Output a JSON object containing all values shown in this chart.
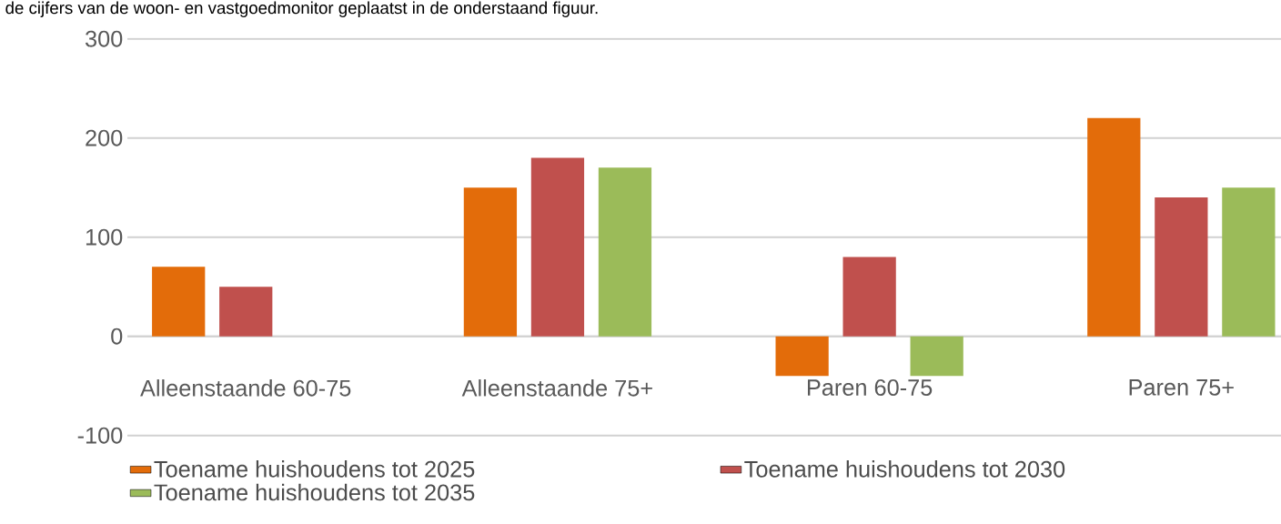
{
  "chart_data": {
    "type": "bar",
    "annotations": [
      "de cijfers van de woon- en vastgoedmonitor geplaatst in de onderstaand figuur."
    ],
    "categories": [
      "Alleenstaande 60-75",
      "Alleenstaande 75+",
      "Paren 60-75",
      "Paren 75+"
    ],
    "series": [
      {
        "name": "Toename huishoudens tot 2025",
        "color": "#e36c0a",
        "values": [
          70,
          150,
          -40,
          220
        ]
      },
      {
        "name": "Toename huishoudens tot 2030",
        "color": "#c0504d",
        "values": [
          50,
          180,
          80,
          140
        ]
      },
      {
        "name": "Toename huishoudens tot 2035",
        "color": "#9bbb59",
        "values": [
          null,
          170,
          -40,
          150
        ]
      }
    ],
    "ylim": [
      -100,
      300
    ],
    "yticks": [
      -100,
      0,
      100,
      200,
      300
    ],
    "grid": "y",
    "legend": "bottom"
  }
}
